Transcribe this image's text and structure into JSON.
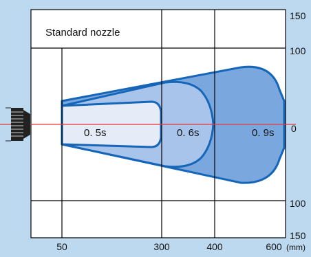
{
  "diagram": {
    "title": "Standard nozzle",
    "x_unit": "(mm)",
    "x_ticks": [
      "50",
      "300",
      "400",
      "600"
    ],
    "y_ticks": [
      "150",
      "100",
      "0",
      "100",
      "150"
    ],
    "zones": [
      {
        "label": "0. 5s"
      },
      {
        "label": "0. 6s"
      },
      {
        "label": "0. 9s"
      }
    ],
    "colors": {
      "background": "#bdd9f0",
      "plot_fill": "#ffffff",
      "zone_0_5s": "#e6ebf8",
      "zone_0_6s": "#a9c4ea",
      "zone_0_9s": "#7aa7de",
      "outline": "#1565b8",
      "centerline": "#e23b3b"
    }
  }
}
